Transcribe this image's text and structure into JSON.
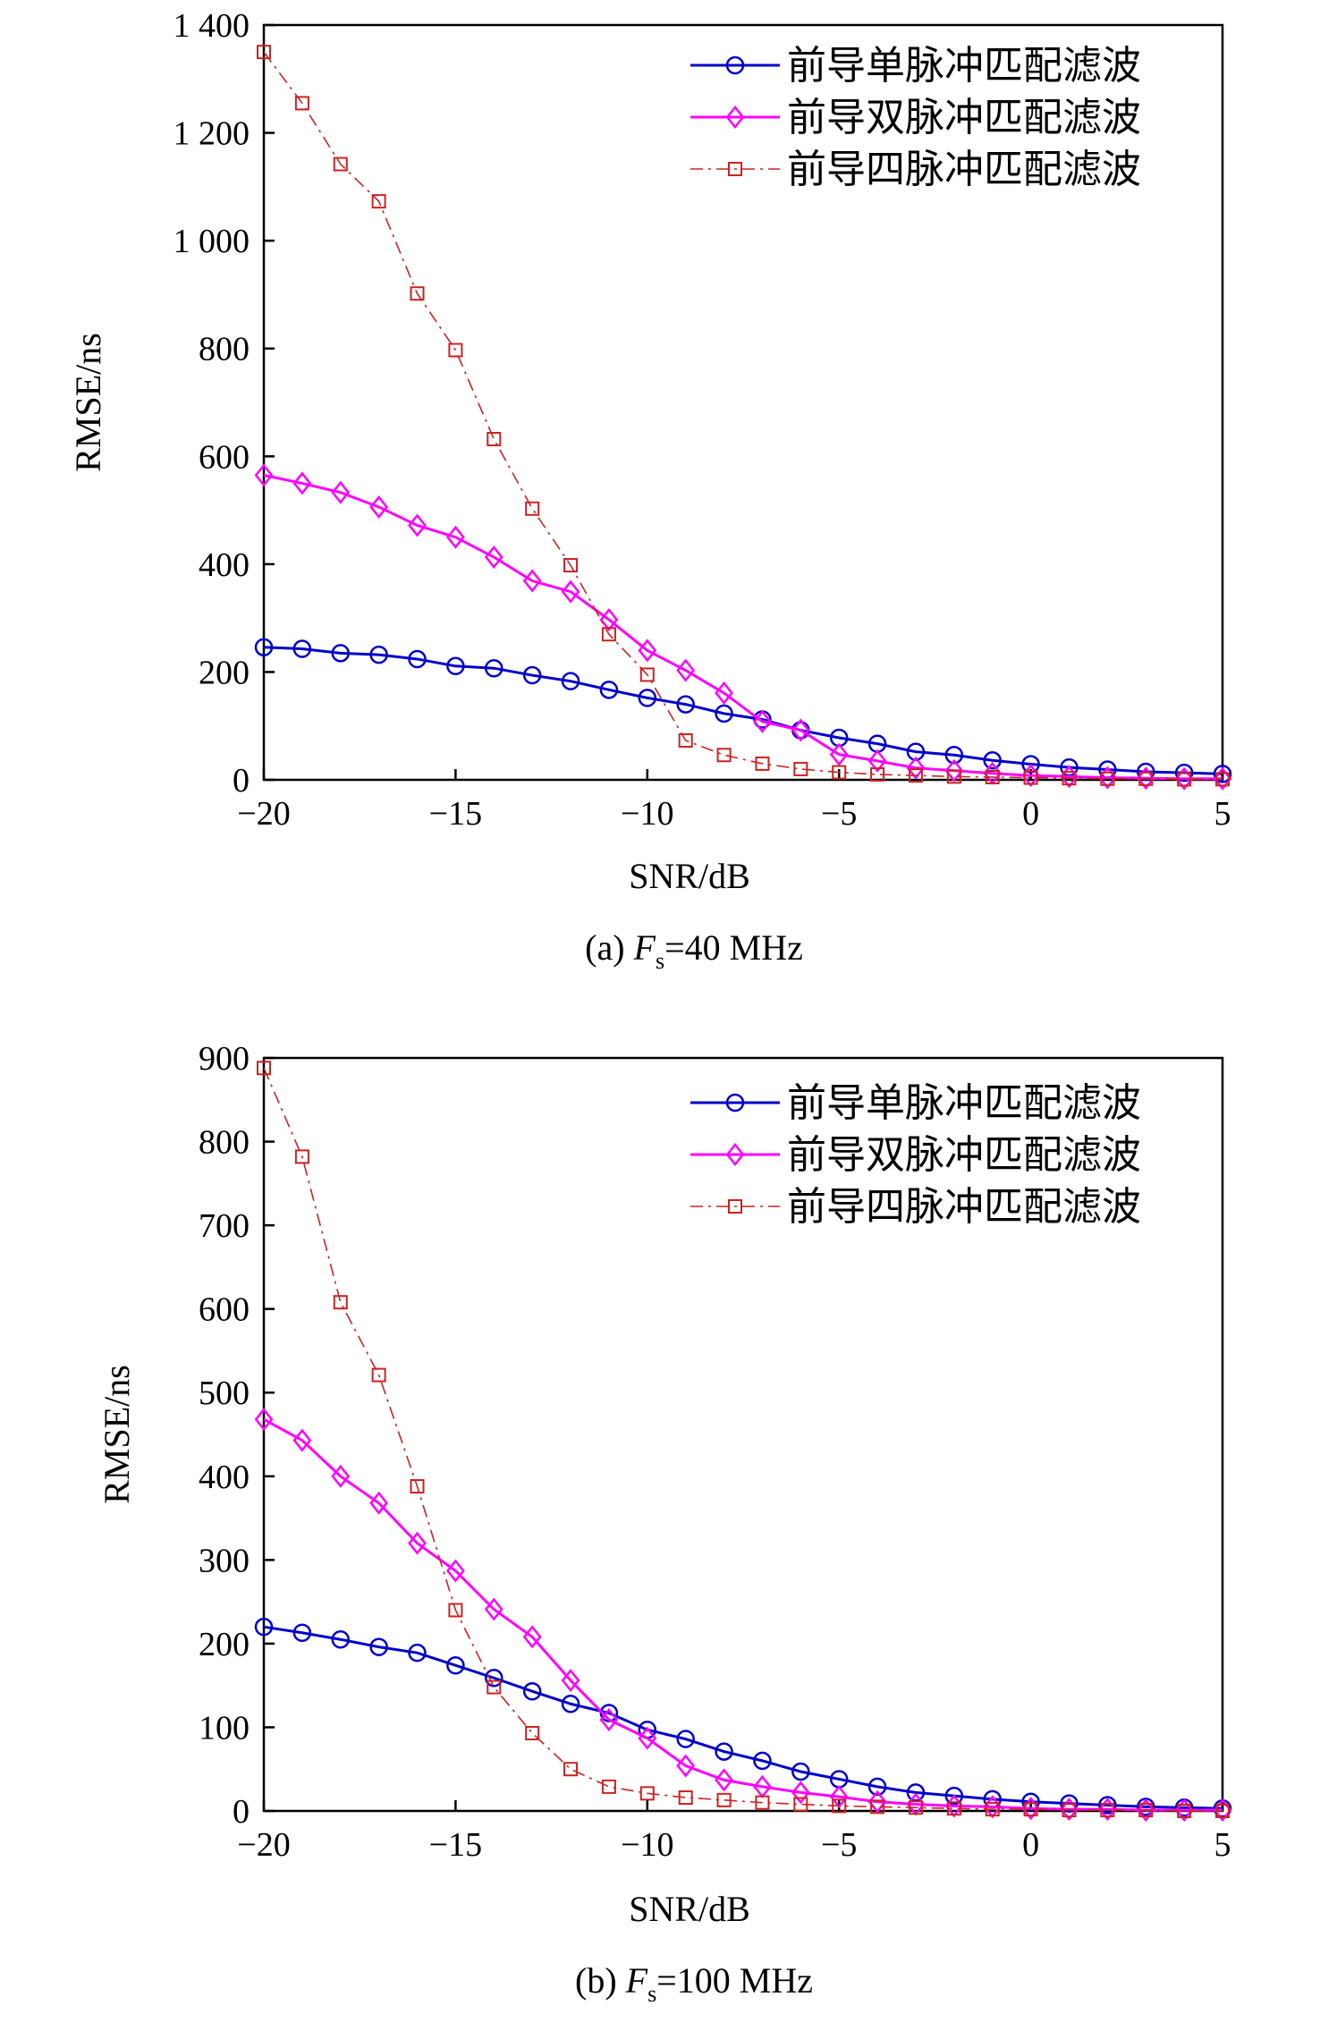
{
  "chart_data": [
    {
      "type": "line",
      "caption": {
        "prefix": "(a) ",
        "var": "F",
        "sub": "s",
        "suffix": "=40 MHz"
      },
      "xlabel": "SNR/dB",
      "ylabel": "RMSE/ns",
      "xlim": [
        -20,
        5
      ],
      "ylim": [
        0,
        1400
      ],
      "xticks": [
        -20,
        -15,
        -10,
        -5,
        0,
        5
      ],
      "xtick_labels": [
        "−20",
        "−15",
        "−10",
        "−5",
        "0",
        "5"
      ],
      "yticks": [
        0,
        200,
        400,
        600,
        800,
        1000,
        1200,
        1400
      ],
      "ytick_labels": [
        "0",
        "200",
        "400",
        "600",
        "800",
        "1 000",
        "1 200",
        "1 400"
      ],
      "legend_position": "top-right",
      "x": [
        -20,
        -19,
        -18,
        -17,
        -16,
        -15,
        -14,
        -13,
        -12,
        -11,
        -10,
        -9,
        -8,
        -7,
        -6,
        -5,
        -4,
        -3,
        -2,
        -1,
        0,
        1,
        2,
        3,
        4,
        5
      ],
      "series": [
        {
          "name": "前导单脉冲匹配滤波",
          "color": "#0000cc",
          "marker": "circle",
          "dash": "solid",
          "values": [
            246,
            243,
            235,
            232,
            224,
            211,
            207,
            194,
            183,
            167,
            152,
            140,
            123,
            112,
            92,
            78,
            67,
            52,
            46,
            36,
            29,
            23,
            19,
            15,
            13,
            11
          ]
        },
        {
          "name": "前导双脉冲匹配滤波",
          "color": "#ff00ff",
          "marker": "diamond",
          "dash": "solid",
          "values": [
            565,
            550,
            533,
            506,
            472,
            450,
            413,
            369,
            349,
            297,
            240,
            203,
            161,
            108,
            92,
            47,
            35,
            22,
            17,
            12,
            8,
            6,
            4,
            3,
            2,
            2
          ]
        },
        {
          "name": "前导四脉冲匹配滤波",
          "color": "#cc2222",
          "marker": "square",
          "dash": "dashdot",
          "values": [
            1350,
            1255,
            1142,
            1073,
            902,
            797,
            632,
            503,
            398,
            270,
            195,
            73,
            46,
            30,
            20,
            14,
            10,
            8,
            6,
            5,
            4,
            3,
            2,
            2,
            1,
            1
          ]
        }
      ]
    },
    {
      "type": "line",
      "caption": {
        "prefix": "(b) ",
        "var": "F",
        "sub": "s",
        "suffix": "=100 MHz"
      },
      "xlabel": "SNR/dB",
      "ylabel": "RMSE/ns",
      "xlim": [
        -20,
        5
      ],
      "ylim": [
        0,
        900
      ],
      "xticks": [
        -20,
        -15,
        -10,
        -5,
        0,
        5
      ],
      "xtick_labels": [
        "−20",
        "−15",
        "−10",
        "−5",
        "0",
        "5"
      ],
      "yticks": [
        0,
        100,
        200,
        300,
        400,
        500,
        600,
        700,
        800,
        900
      ],
      "ytick_labels": [
        "0",
        "100",
        "200",
        "300",
        "400",
        "500",
        "600",
        "700",
        "800",
        "900"
      ],
      "legend_position": "top-right",
      "x": [
        -20,
        -19,
        -18,
        -17,
        -16,
        -15,
        -14,
        -13,
        -12,
        -11,
        -10,
        -9,
        -8,
        -7,
        -6,
        -5,
        -4,
        -3,
        -2,
        -1,
        0,
        1,
        2,
        3,
        4,
        5
      ],
      "series": [
        {
          "name": "前导单脉冲匹配滤波",
          "color": "#0000cc",
          "marker": "circle",
          "dash": "solid",
          "values": [
            220,
            213,
            205,
            196,
            189,
            174,
            159,
            143,
            128,
            117,
            97,
            86,
            71,
            60,
            47,
            38,
            29,
            22,
            18,
            14,
            11,
            9,
            7,
            5,
            4,
            3
          ]
        },
        {
          "name": "前导双脉冲匹配滤波",
          "color": "#ff00ff",
          "marker": "diamond",
          "dash": "solid",
          "values": [
            468,
            443,
            400,
            368,
            320,
            287,
            241,
            208,
            156,
            109,
            87,
            54,
            37,
            29,
            22,
            17,
            11,
            8,
            6,
            5,
            3,
            2,
            2,
            1,
            1,
            1
          ]
        },
        {
          "name": "前导四脉冲匹配滤波",
          "color": "#cc2222",
          "marker": "square",
          "dash": "dashdot",
          "values": [
            888,
            782,
            608,
            521,
            388,
            240,
            148,
            93,
            50,
            29,
            21,
            16,
            13,
            10,
            8,
            6,
            5,
            4,
            3,
            2,
            2,
            1,
            1,
            1,
            0,
            0
          ]
        }
      ]
    }
  ]
}
